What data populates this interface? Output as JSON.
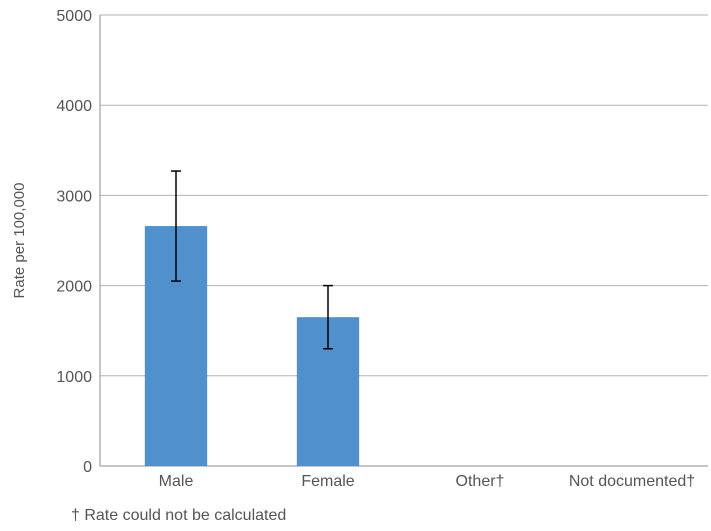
{
  "chart_data": {
    "type": "bar",
    "categories": [
      "Male",
      "Female",
      "Other†",
      "Not documented†"
    ],
    "values": [
      2660,
      1650,
      null,
      null
    ],
    "error_bars": [
      {
        "low": 2050,
        "high": 3270
      },
      {
        "low": 1300,
        "high": 2000
      },
      null,
      null
    ],
    "ylabel": "Rate per 100,000",
    "xlabel": "",
    "title": "",
    "ylim": [
      0,
      5000
    ],
    "yticks": [
      0,
      1000,
      2000,
      3000,
      4000,
      5000
    ],
    "grid": true,
    "legend": "none",
    "bar_color": "#4f90cd",
    "footnote": "† Rate could not be calculated"
  }
}
